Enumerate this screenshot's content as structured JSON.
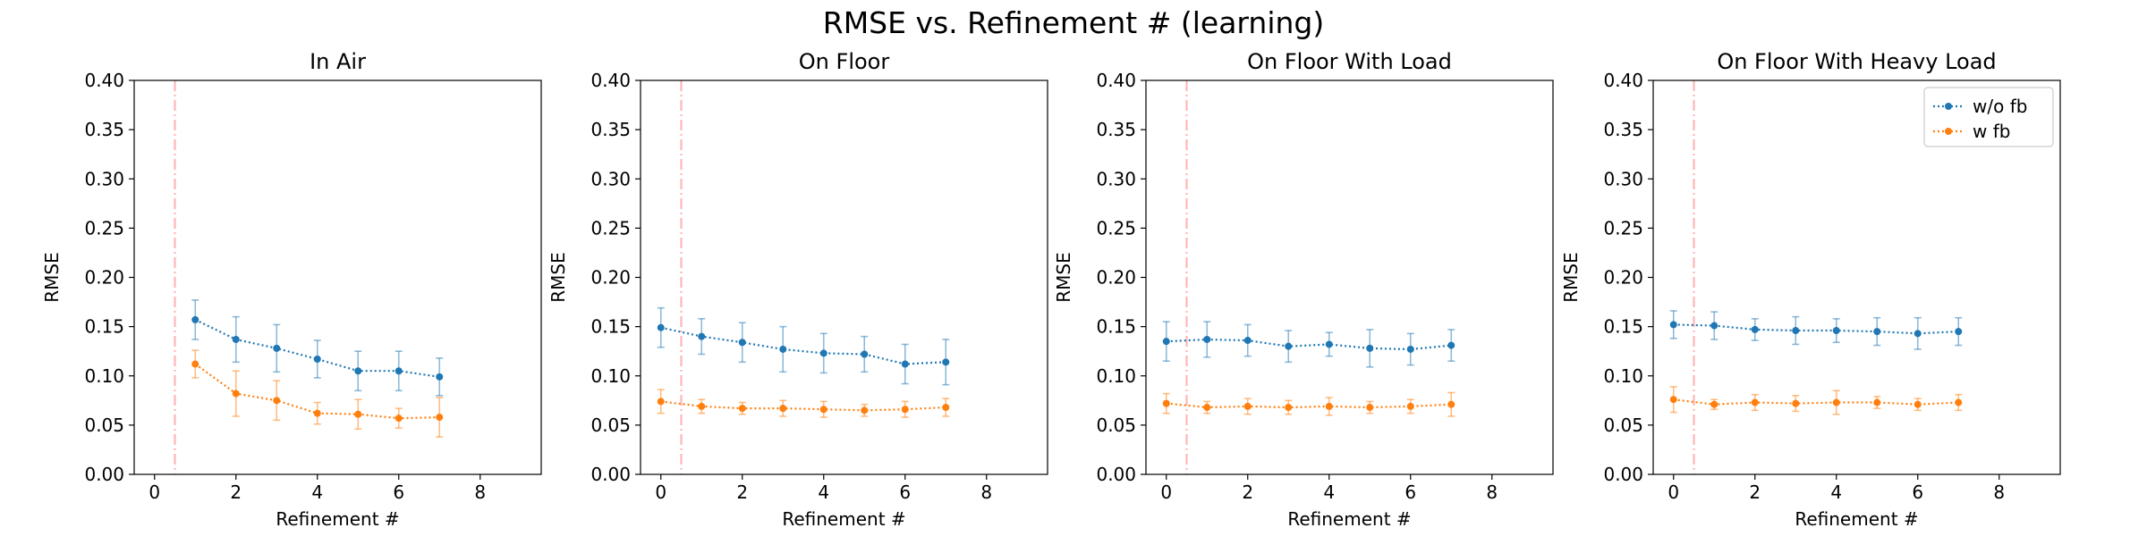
{
  "figure": {
    "title": "RMSE vs. Refinement # (learning)"
  },
  "colors": {
    "wo_fb": "#1f77b4",
    "w_fb": "#ff7f0e",
    "vline": "#ffb6b6"
  },
  "chart_data": [
    {
      "type": "line",
      "title": "In Air",
      "xlabel": "Refinement #",
      "ylabel": "RMSE",
      "xlim": [
        -0.5,
        9.5
      ],
      "ylim": [
        0,
        0.4
      ],
      "xticks": [
        "0",
        "2",
        "4",
        "6",
        "8"
      ],
      "yticks": [
        "0.00",
        "0.05",
        "0.10",
        "0.15",
        "0.20",
        "0.25",
        "0.30",
        "0.35",
        "0.40"
      ],
      "vline_x": 0.5,
      "series": [
        {
          "name": "w/o fb",
          "x": [
            1,
            2,
            3,
            4,
            5,
            6,
            7
          ],
          "values": [
            0.157,
            0.137,
            0.128,
            0.117,
            0.105,
            0.105,
            0.099
          ],
          "err": [
            0.02,
            0.023,
            0.024,
            0.019,
            0.02,
            0.02,
            0.019
          ]
        },
        {
          "name": "w fb",
          "x": [
            1,
            2,
            3,
            4,
            5,
            6,
            7
          ],
          "values": [
            0.112,
            0.082,
            0.075,
            0.062,
            0.061,
            0.057,
            0.058
          ],
          "err": [
            0.014,
            0.023,
            0.02,
            0.011,
            0.015,
            0.01,
            0.02
          ]
        }
      ]
    },
    {
      "type": "line",
      "title": "On Floor",
      "xlabel": "Refinement #",
      "ylabel": "RMSE",
      "xlim": [
        -0.5,
        9.5
      ],
      "ylim": [
        0,
        0.4
      ],
      "xticks": [
        "0",
        "2",
        "4",
        "6",
        "8"
      ],
      "yticks": [
        "0.00",
        "0.05",
        "0.10",
        "0.15",
        "0.20",
        "0.25",
        "0.30",
        "0.35",
        "0.40"
      ],
      "vline_x": 0.5,
      "series": [
        {
          "name": "w/o fb",
          "x": [
            0,
            1,
            2,
            3,
            4,
            5,
            6,
            7
          ],
          "values": [
            0.149,
            0.14,
            0.134,
            0.127,
            0.123,
            0.122,
            0.112,
            0.114
          ],
          "err": [
            0.02,
            0.018,
            0.02,
            0.023,
            0.02,
            0.018,
            0.02,
            0.023
          ]
        },
        {
          "name": "w fb",
          "x": [
            0,
            1,
            2,
            3,
            4,
            5,
            6,
            7
          ],
          "values": [
            0.074,
            0.069,
            0.067,
            0.067,
            0.066,
            0.065,
            0.066,
            0.068
          ],
          "err": [
            0.012,
            0.007,
            0.006,
            0.008,
            0.008,
            0.006,
            0.008,
            0.009
          ]
        }
      ]
    },
    {
      "type": "line",
      "title": "On Floor With Load",
      "xlabel": "Refinement #",
      "ylabel": "RMSE",
      "xlim": [
        -0.5,
        9.5
      ],
      "ylim": [
        0,
        0.4
      ],
      "xticks": [
        "0",
        "2",
        "4",
        "6",
        "8"
      ],
      "yticks": [
        "0.00",
        "0.05",
        "0.10",
        "0.15",
        "0.20",
        "0.25",
        "0.30",
        "0.35",
        "0.40"
      ],
      "vline_x": 0.5,
      "series": [
        {
          "name": "w/o fb",
          "x": [
            0,
            1,
            2,
            3,
            4,
            5,
            6,
            7
          ],
          "values": [
            0.135,
            0.137,
            0.136,
            0.13,
            0.132,
            0.128,
            0.127,
            0.131
          ],
          "err": [
            0.02,
            0.018,
            0.016,
            0.016,
            0.012,
            0.019,
            0.016,
            0.016
          ]
        },
        {
          "name": "w fb",
          "x": [
            0,
            1,
            2,
            3,
            4,
            5,
            6,
            7
          ],
          "values": [
            0.072,
            0.068,
            0.069,
            0.068,
            0.069,
            0.068,
            0.069,
            0.071
          ],
          "err": [
            0.01,
            0.006,
            0.008,
            0.007,
            0.009,
            0.006,
            0.007,
            0.012
          ]
        }
      ]
    },
    {
      "type": "line",
      "title": "On Floor With Heavy Load",
      "xlabel": "Refinement #",
      "ylabel": "RMSE",
      "xlim": [
        -0.5,
        9.5
      ],
      "ylim": [
        0,
        0.4
      ],
      "xticks": [
        "0",
        "2",
        "4",
        "6",
        "8"
      ],
      "yticks": [
        "0.00",
        "0.05",
        "0.10",
        "0.15",
        "0.20",
        "0.25",
        "0.30",
        "0.35",
        "0.40"
      ],
      "vline_x": 0.5,
      "legend": "top-right",
      "series": [
        {
          "name": "w/o fb",
          "x": [
            0,
            1,
            2,
            3,
            4,
            5,
            6,
            7
          ],
          "values": [
            0.152,
            0.151,
            0.147,
            0.146,
            0.146,
            0.145,
            0.143,
            0.145
          ],
          "err": [
            0.014,
            0.014,
            0.011,
            0.014,
            0.012,
            0.014,
            0.016,
            0.014
          ]
        },
        {
          "name": "w fb",
          "x": [
            0,
            1,
            2,
            3,
            4,
            5,
            6,
            7
          ],
          "values": [
            0.076,
            0.071,
            0.073,
            0.072,
            0.073,
            0.073,
            0.071,
            0.073
          ],
          "err": [
            0.013,
            0.005,
            0.008,
            0.008,
            0.012,
            0.006,
            0.006,
            0.008
          ]
        }
      ]
    }
  ]
}
